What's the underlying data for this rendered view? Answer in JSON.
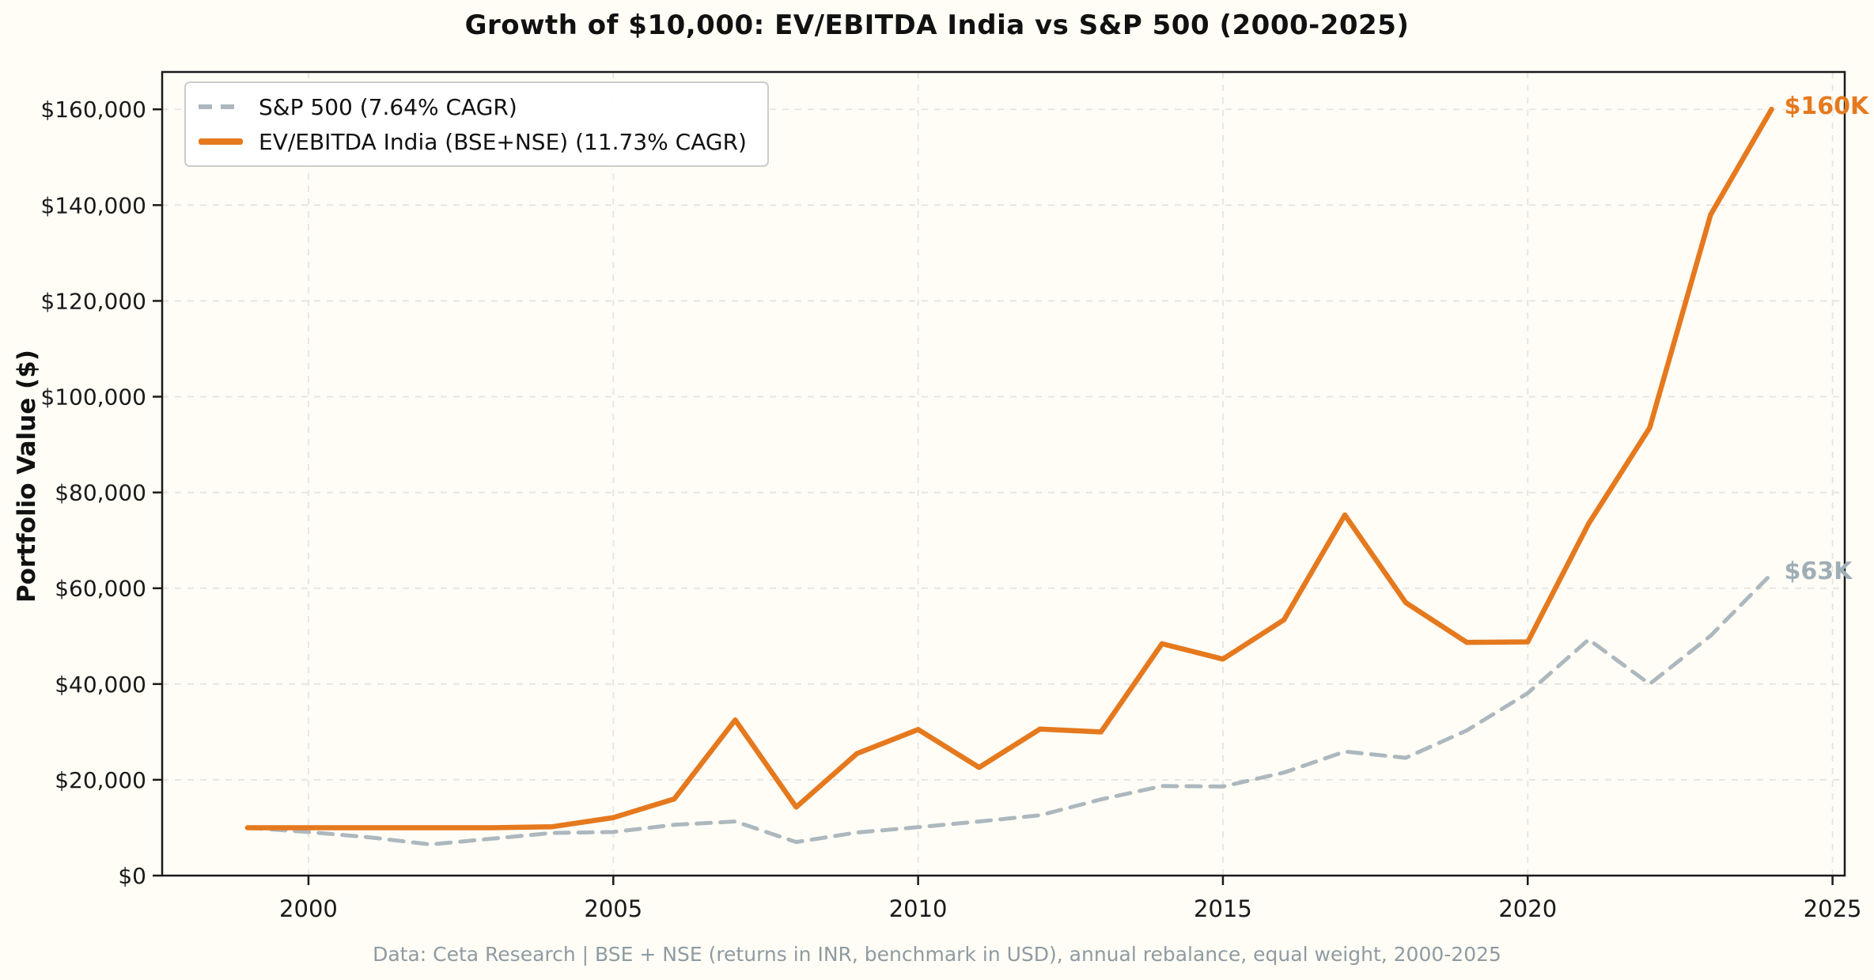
{
  "page": {
    "background": "#FFFDF6"
  },
  "chart_data": {
    "type": "line",
    "title": "Growth of $10,000: EV/EBITDA India vs S&P 500 (2000-2025)",
    "ylabel": "Portfolio Value ($)",
    "xlabel": "",
    "footer": "Data: Ceta Research | BSE + NSE (returns in INR, benchmark in USD), annual rebalance, equal weight, 2000-2025",
    "grid": true,
    "legend_position": "upper-left",
    "xlim": [
      1997.6,
      2025.2
    ],
    "ylim": [
      0,
      167800
    ],
    "x": [
      1999,
      2000,
      2001,
      2002,
      2003,
      2004,
      2005,
      2006,
      2007,
      2008,
      2009,
      2010,
      2011,
      2012,
      2013,
      2014,
      2015,
      2016,
      2017,
      2018,
      2019,
      2020,
      2021,
      2022,
      2023,
      2024
    ],
    "x_ticks": [
      {
        "value": 2000,
        "label": "2000"
      },
      {
        "value": 2005,
        "label": "2005"
      },
      {
        "value": 2010,
        "label": "2010"
      },
      {
        "value": 2015,
        "label": "2015"
      },
      {
        "value": 2020,
        "label": "2020"
      },
      {
        "value": 2025,
        "label": "2025"
      }
    ],
    "y_ticks": [
      {
        "value": 0,
        "label": "$0"
      },
      {
        "value": 20000,
        "label": "$20,000"
      },
      {
        "value": 40000,
        "label": "$40,000"
      },
      {
        "value": 60000,
        "label": "$60,000"
      },
      {
        "value": 80000,
        "label": "$80,000"
      },
      {
        "value": 100000,
        "label": "$100,000"
      },
      {
        "value": 120000,
        "label": "$120,000"
      },
      {
        "value": 140000,
        "label": "$140,000"
      },
      {
        "value": 160000,
        "label": "$160,000"
      }
    ],
    "series": [
      {
        "name": "S&P 500 (7.64% CAGR)",
        "style": "dashed",
        "color": "#ACB8BE",
        "line_width": 5,
        "end_label": "$63K",
        "end_label_color": "#9FAEB6",
        "values": [
          10000,
          9100,
          8000,
          6500,
          7700,
          8900,
          9100,
          10600,
          11300,
          7000,
          9000,
          10100,
          11300,
          12600,
          15900,
          18700,
          18600,
          21500,
          25900,
          24600,
          30300,
          38100,
          49300,
          40000,
          50100,
          63000
        ]
      },
      {
        "name": "EV/EBITDA India (BSE+NSE) (11.73% CAGR)",
        "style": "solid",
        "color": "#E5791E",
        "line_width": 6.5,
        "end_label": "$160K",
        "end_label_color": "#E5791E",
        "values": [
          10000,
          10000,
          10000,
          10000,
          10000,
          10200,
          12100,
          16000,
          32500,
          14300,
          25500,
          30500,
          22600,
          30600,
          30000,
          48400,
          45200,
          53400,
          75300,
          57000,
          48700,
          48800,
          73500,
          93500,
          138000,
          160000
        ]
      }
    ]
  }
}
